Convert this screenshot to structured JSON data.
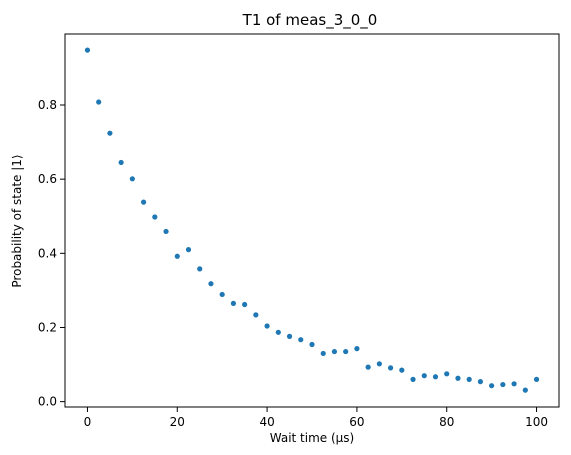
{
  "chart_data": {
    "type": "scatter",
    "title": "T1 of meas_3_0_0",
    "xlabel": "Wait time (µs)",
    "ylabel": "Probability of state |1⟩",
    "xlim": [
      -5,
      105
    ],
    "ylim": [
      -0.0145,
      0.9915
    ],
    "xticks": [
      0,
      20,
      40,
      60,
      80,
      100
    ],
    "xtick_labels": [
      "0",
      "20",
      "40",
      "60",
      "80",
      "100"
    ],
    "yticks": [
      0.0,
      0.2,
      0.4,
      0.6,
      0.8
    ],
    "ytick_labels": [
      "0.0",
      "0.2",
      "0.4",
      "0.6",
      "0.8"
    ],
    "grid": false,
    "marker_color": "#1f77b4",
    "series": [
      {
        "x": [
          0,
          2.5,
          5,
          7.5,
          10,
          12.5,
          15,
          17.5,
          20,
          22.5,
          25,
          27.5,
          30,
          32.5,
          35,
          37.5,
          40,
          42.5,
          45,
          47.5,
          50,
          52.5,
          55,
          57.5,
          60,
          62.5,
          65,
          67.5,
          70,
          72.5,
          75,
          77.5,
          80,
          82.5,
          85,
          87.5,
          90,
          92.5,
          95,
          97.5,
          100
        ],
        "y": [
          0.948,
          0.808,
          0.724,
          0.645,
          0.601,
          0.538,
          0.498,
          0.459,
          0.392,
          0.41,
          0.358,
          0.318,
          0.289,
          0.265,
          0.262,
          0.234,
          0.204,
          0.187,
          0.176,
          0.167,
          0.154,
          0.13,
          0.135,
          0.135,
          0.143,
          0.093,
          0.102,
          0.091,
          0.085,
          0.06,
          0.07,
          0.067,
          0.075,
          0.063,
          0.06,
          0.054,
          0.043,
          0.046,
          0.048,
          0.031,
          0.06
        ]
      }
    ]
  }
}
